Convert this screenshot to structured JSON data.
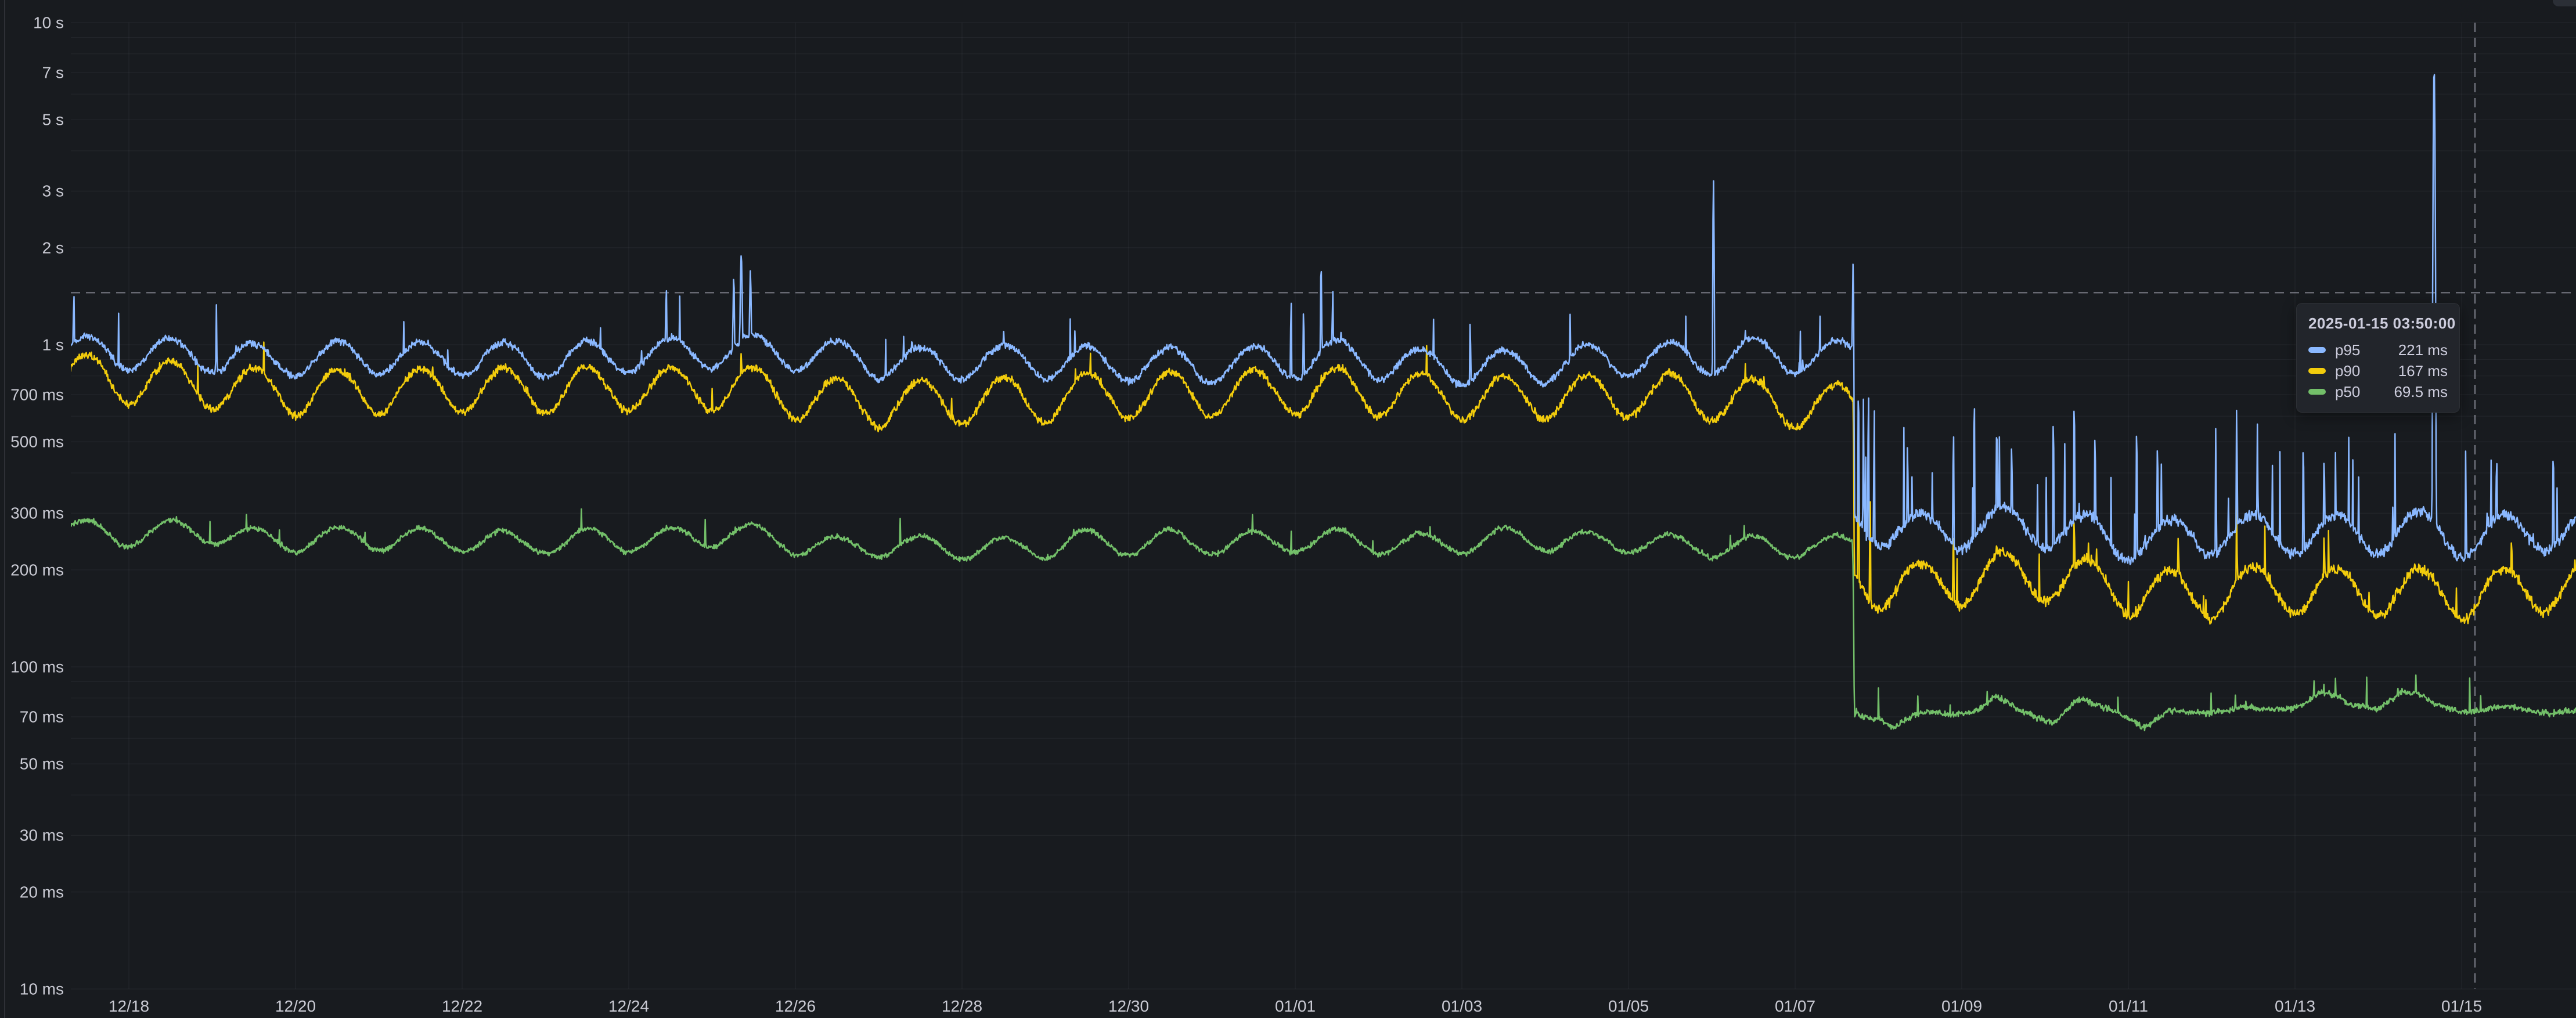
{
  "page": {
    "background": "#181b1f",
    "grid_color": "rgba(204,204,220,0.07)",
    "axis_text_color": "#c9cad3",
    "crosshair_color": "rgba(204,204,220,0.55)",
    "tooltip_bg": "#22252b"
  },
  "tooltip": {
    "timestamp": "2025-01-15 03:50:00",
    "rows": [
      {
        "series": "p95",
        "value": "221 ms",
        "color": "#8AB8FF"
      },
      {
        "series": "p90",
        "value": "167 ms",
        "color": "#F2CC0C"
      },
      {
        "series": "p50",
        "value": "69.5 ms",
        "color": "#73BF69"
      }
    ]
  },
  "chart_data": {
    "type": "line",
    "title": "",
    "xlabel": "",
    "ylabel": "",
    "y_axis": {
      "scale": "log10",
      "unit": "duration",
      "min_ms": 10,
      "max_ms": 10000,
      "ticks": [
        {
          "ms": 10000,
          "label": "10 s"
        },
        {
          "ms": 7000,
          "label": "7 s"
        },
        {
          "ms": 5000,
          "label": "5 s"
        },
        {
          "ms": 3000,
          "label": "3 s"
        },
        {
          "ms": 2000,
          "label": "2 s"
        },
        {
          "ms": 1000,
          "label": "1 s"
        },
        {
          "ms": 700,
          "label": "700 ms"
        },
        {
          "ms": 500,
          "label": "500 ms"
        },
        {
          "ms": 300,
          "label": "300 ms"
        },
        {
          "ms": 200,
          "label": "200 ms"
        },
        {
          "ms": 100,
          "label": "100 ms"
        },
        {
          "ms": 70,
          "label": "70 ms"
        },
        {
          "ms": 50,
          "label": "50 ms"
        },
        {
          "ms": 30,
          "label": "30 ms"
        },
        {
          "ms": 20,
          "label": "20 ms"
        },
        {
          "ms": 10,
          "label": "10 ms"
        }
      ]
    },
    "x_axis": {
      "start_day": -0.7,
      "end_day": 29.37,
      "ticks": [
        {
          "day": 0,
          "label": "12/18"
        },
        {
          "day": 2,
          "label": "12/20"
        },
        {
          "day": 4,
          "label": "12/22"
        },
        {
          "day": 6,
          "label": "12/24"
        },
        {
          "day": 8,
          "label": "12/26"
        },
        {
          "day": 10,
          "label": "12/28"
        },
        {
          "day": 12,
          "label": "12/30"
        },
        {
          "day": 14,
          "label": "01/01"
        },
        {
          "day": 16,
          "label": "01/03"
        },
        {
          "day": 18,
          "label": "01/05"
        },
        {
          "day": 20,
          "label": "01/07"
        },
        {
          "day": 22,
          "label": "01/09"
        },
        {
          "day": 24,
          "label": "01/11"
        },
        {
          "day": 26,
          "label": "01/13"
        },
        {
          "day": 28,
          "label": "01/15"
        }
      ]
    },
    "step_day": 20.7,
    "daily_peak_frac": 0.5,
    "sample_step_days": 0.006944,
    "crosshair": {
      "time_label": "2025-01-15 03:50:00",
      "day": 28.16,
      "value_ms": 1450
    },
    "series": [
      {
        "name": "p50",
        "color": "#73BF69",
        "daily_amp": [
          0.08,
          0.02
        ],
        "noise": [
          0.022,
          0.026
        ],
        "spike_prob": [
          0.004,
          0.012
        ],
        "spike_amp": [
          0.22,
          0.25
        ],
        "base_points": [
          [
            -0.7,
            268
          ],
          [
            0,
            258
          ],
          [
            1,
            250
          ],
          [
            2,
            246
          ],
          [
            3,
            247
          ],
          [
            4,
            249
          ],
          [
            5,
            251
          ],
          [
            6,
            256
          ],
          [
            6.5,
            260
          ],
          [
            7,
            264
          ],
          [
            7.3,
            267
          ],
          [
            7.6,
            262
          ],
          [
            8,
            252
          ],
          [
            9,
            243
          ],
          [
            10,
            242
          ],
          [
            11,
            245
          ],
          [
            12,
            247
          ],
          [
            13,
            248
          ],
          [
            14,
            251
          ],
          [
            14.3,
            254
          ],
          [
            14.6,
            256
          ],
          [
            15,
            252
          ],
          [
            16,
            248
          ],
          [
            17,
            250
          ],
          [
            18,
            252
          ],
          [
            19,
            248
          ],
          [
            20,
            245
          ],
          [
            20.4,
            243
          ],
          [
            20.69,
            242
          ],
          [
            20.71,
            73
          ],
          [
            21,
            72
          ],
          [
            21.2,
            66
          ],
          [
            21.6,
            72
          ],
          [
            22.2,
            73
          ],
          [
            22.4,
            79
          ],
          [
            22.7,
            71
          ],
          [
            23.1,
            66
          ],
          [
            23.4,
            76
          ],
          [
            23.8,
            72
          ],
          [
            24.2,
            64
          ],
          [
            24.5,
            70
          ],
          [
            25,
            72
          ],
          [
            25.5,
            70
          ],
          [
            26,
            73
          ],
          [
            26.3,
            79
          ],
          [
            26.7,
            72
          ],
          [
            27,
            73
          ],
          [
            27.3,
            82
          ],
          [
            27.6,
            76
          ],
          [
            28,
            72
          ],
          [
            28.4,
            71
          ],
          [
            29,
            73
          ],
          [
            29.37,
            72
          ]
        ],
        "spikes": [
          [
            27.45,
            95,
            0.008
          ]
        ]
      },
      {
        "name": "p90",
        "color": "#F2CC0C",
        "daily_amp": [
          0.16,
          0.17
        ],
        "noise": [
          0.035,
          0.045
        ],
        "spike_prob": [
          0.005,
          0.02
        ],
        "spike_amp": [
          0.3,
          0.45
        ],
        "base_points": [
          [
            -0.7,
            810
          ],
          [
            0,
            760
          ],
          [
            0.5,
            735
          ],
          [
            1,
            715
          ],
          [
            1.5,
            700
          ],
          [
            2,
            690
          ],
          [
            2.5,
            688
          ],
          [
            3,
            692
          ],
          [
            3.5,
            696
          ],
          [
            4,
            700
          ],
          [
            5,
            705
          ],
          [
            6,
            720
          ],
          [
            6.5,
            730
          ],
          [
            7,
            745
          ],
          [
            7.3,
            755
          ],
          [
            7.6,
            740
          ],
          [
            8,
            705
          ],
          [
            8.5,
            680
          ],
          [
            9,
            665
          ],
          [
            10,
            662
          ],
          [
            11,
            670
          ],
          [
            12,
            676
          ],
          [
            13,
            682
          ],
          [
            13.5,
            688
          ],
          [
            14,
            695
          ],
          [
            14.3,
            705
          ],
          [
            14.6,
            712
          ],
          [
            15,
            700
          ],
          [
            15.5,
            690
          ],
          [
            16,
            685
          ],
          [
            16.5,
            692
          ],
          [
            17,
            698
          ],
          [
            17.5,
            702
          ],
          [
            18,
            706
          ],
          [
            18.5,
            702
          ],
          [
            19,
            695
          ],
          [
            19.5,
            690
          ],
          [
            20,
            684
          ],
          [
            20.4,
            680
          ],
          [
            20.69,
            676
          ],
          [
            20.71,
            196
          ],
          [
            21,
            190
          ],
          [
            21.5,
            182
          ],
          [
            22,
            188
          ],
          [
            22.5,
            192
          ],
          [
            23,
            188
          ],
          [
            23.5,
            180
          ],
          [
            24,
            172
          ],
          [
            24.5,
            170
          ],
          [
            25,
            175
          ],
          [
            25.5,
            180
          ],
          [
            26,
            178
          ],
          [
            26.5,
            176
          ],
          [
            27,
            178
          ],
          [
            27.5,
            180
          ],
          [
            28.16,
            172
          ],
          [
            28.5,
            176
          ],
          [
            29,
            180
          ],
          [
            29.37,
            184
          ]
        ],
        "spikes": [
          [
            7.35,
            950,
            0.012
          ],
          [
            14.31,
            860,
            0.008
          ],
          [
            19.4,
            980,
            0.006
          ],
          [
            20.695,
            680,
            0.008
          ],
          [
            20.76,
            560,
            0.006
          ],
          [
            20.9,
            380,
            0.005
          ],
          [
            21.9,
            290,
            0.005
          ],
          [
            22.42,
            300,
            0.005
          ],
          [
            23.35,
            315,
            0.006
          ],
          [
            24.6,
            300,
            0.005
          ],
          [
            25.3,
            330,
            0.006
          ],
          [
            26.35,
            305,
            0.005
          ],
          [
            28.6,
            300,
            0.005
          ]
        ]
      },
      {
        "name": "p95",
        "color": "#8AB8FF",
        "daily_amp": [
          0.12,
          0.14
        ],
        "noise": [
          0.03,
          0.045
        ],
        "spike_prob": [
          0.006,
          0.035
        ],
        "spike_amp": [
          0.45,
          1.0
        ],
        "base_points": [
          [
            -0.7,
            960
          ],
          [
            0,
            920
          ],
          [
            0.5,
            900
          ],
          [
            1,
            890
          ],
          [
            1.5,
            880
          ],
          [
            2,
            875
          ],
          [
            2.5,
            880
          ],
          [
            3,
            885
          ],
          [
            3.5,
            890
          ],
          [
            4,
            895
          ],
          [
            5,
            900
          ],
          [
            6,
            915
          ],
          [
            6.5,
            925
          ],
          [
            7,
            935
          ],
          [
            7.3,
            945
          ],
          [
            7.6,
            930
          ],
          [
            8,
            900
          ],
          [
            8.5,
            880
          ],
          [
            9,
            870
          ],
          [
            10,
            868
          ],
          [
            11,
            875
          ],
          [
            12,
            880
          ],
          [
            13,
            885
          ],
          [
            13.5,
            890
          ],
          [
            14,
            900
          ],
          [
            14.3,
            915
          ],
          [
            14.6,
            920
          ],
          [
            15,
            905
          ],
          [
            15.5,
            895
          ],
          [
            16,
            890
          ],
          [
            16.5,
            900
          ],
          [
            17,
            905
          ],
          [
            17.5,
            910
          ],
          [
            18,
            915
          ],
          [
            18.5,
            910
          ],
          [
            19,
            900
          ],
          [
            19.5,
            895
          ],
          [
            20,
            888
          ],
          [
            20.4,
            885
          ],
          [
            20.69,
            880
          ],
          [
            20.71,
            275
          ],
          [
            21,
            265
          ],
          [
            21.5,
            255
          ],
          [
            22,
            262
          ],
          [
            22.5,
            268
          ],
          [
            23,
            262
          ],
          [
            23.5,
            252
          ],
          [
            23.8,
            240
          ],
          [
            24.3,
            238
          ],
          [
            24.8,
            245
          ],
          [
            25.3,
            255
          ],
          [
            25.8,
            250
          ],
          [
            26.3,
            252
          ],
          [
            26.8,
            248
          ],
          [
            27.3,
            255
          ],
          [
            27.8,
            252
          ],
          [
            28.16,
            240
          ],
          [
            28.5,
            248
          ],
          [
            29,
            255
          ],
          [
            29.37,
            260
          ]
        ],
        "spikes": [
          [
            -0.66,
            1430,
            0.01
          ],
          [
            1.05,
            1330,
            0.008
          ],
          [
            3.3,
            1180,
            0.007
          ],
          [
            6.45,
            1520,
            0.009
          ],
          [
            7.26,
            1620,
            0.012
          ],
          [
            7.35,
            1900,
            0.016
          ],
          [
            7.46,
            1700,
            0.012
          ],
          [
            9.4,
            1150,
            0.007
          ],
          [
            11.3,
            1210,
            0.007
          ],
          [
            13.95,
            1380,
            0.008
          ],
          [
            14.1,
            1300,
            0.008
          ],
          [
            14.31,
            1760,
            0.01
          ],
          [
            14.45,
            1500,
            0.008
          ],
          [
            16.1,
            1230,
            0.007
          ],
          [
            17.3,
            1260,
            0.007
          ],
          [
            19.02,
            3250,
            0.008
          ],
          [
            19.4,
            1240,
            0.006
          ],
          [
            20.3,
            1250,
            0.007
          ],
          [
            20.695,
            1780,
            0.009
          ],
          [
            20.76,
            760,
            0.006
          ],
          [
            20.82,
            680,
            0.006
          ],
          [
            20.88,
            720,
            0.006
          ],
          [
            20.95,
            640,
            0.006
          ],
          [
            21.35,
            560,
            0.005
          ],
          [
            21.9,
            600,
            0.005
          ],
          [
            22.15,
            700,
            0.006
          ],
          [
            22.42,
            650,
            0.005
          ],
          [
            22.6,
            560,
            0.005
          ],
          [
            23.1,
            660,
            0.005
          ],
          [
            23.35,
            700,
            0.006
          ],
          [
            23.6,
            600,
            0.005
          ],
          [
            24.1,
            620,
            0.005
          ],
          [
            24.35,
            560,
            0.005
          ],
          [
            25.05,
            580,
            0.005
          ],
          [
            25.3,
            650,
            0.006
          ],
          [
            25.55,
            600,
            0.005
          ],
          [
            26.1,
            560,
            0.005
          ],
          [
            26.35,
            520,
            0.005
          ],
          [
            27.2,
            540,
            0.005
          ],
          [
            27.67,
            7250,
            0.01
          ],
          [
            28.05,
            500,
            0.005
          ],
          [
            28.42,
            520,
            0.005
          ],
          [
            29.1,
            540,
            0.005
          ]
        ]
      }
    ]
  }
}
